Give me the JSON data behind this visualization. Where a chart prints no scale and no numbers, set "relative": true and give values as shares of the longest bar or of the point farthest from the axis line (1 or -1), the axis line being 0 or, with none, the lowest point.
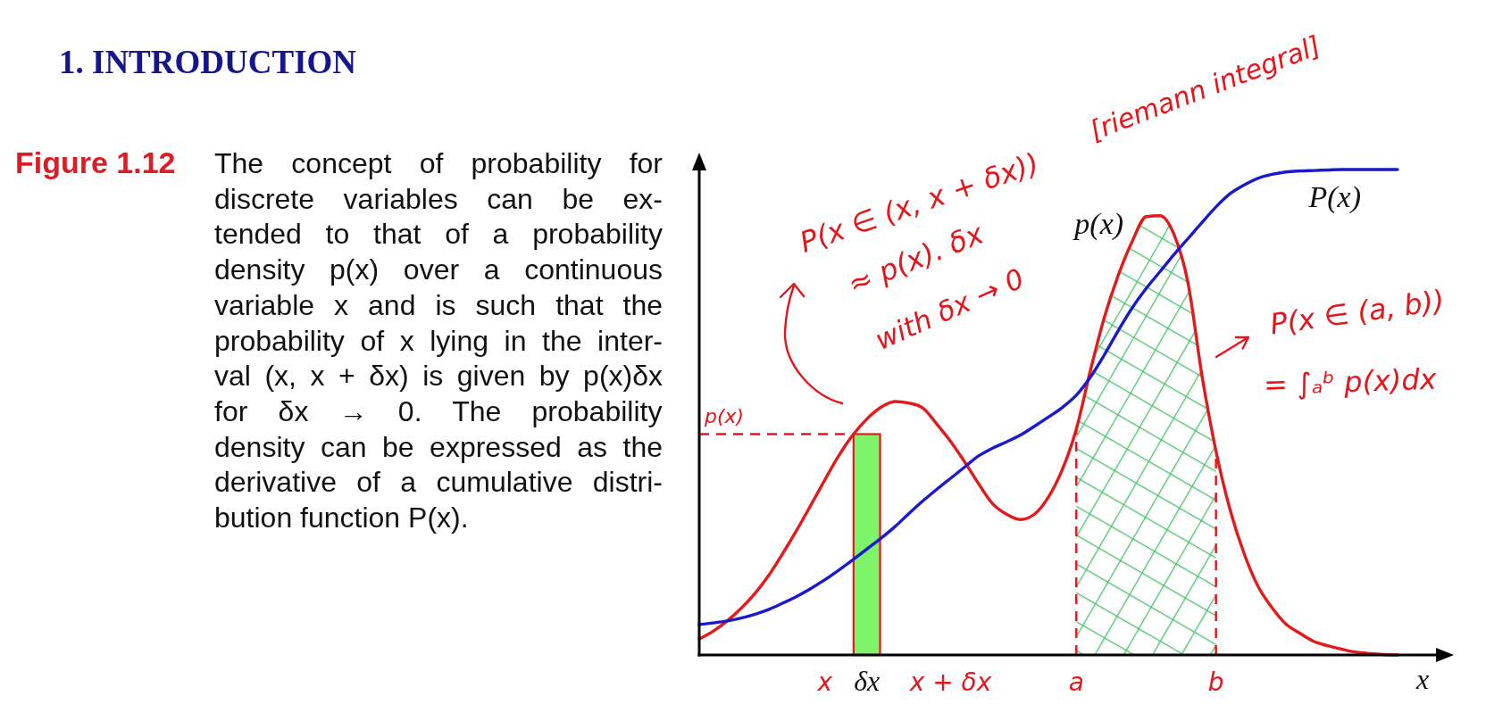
{
  "chart_data": {
    "type": "line",
    "title": "1. INTRODUCTION",
    "subtitle": "Figure 1.12",
    "xlabel": "x",
    "relative": true,
    "categories": [
      null,
      null,
      null,
      null,
      null,
      null,
      null,
      null,
      null,
      "x",
      null,
      null,
      "δx",
      null,
      null,
      null,
      null,
      null,
      "x + δx",
      null,
      null,
      null,
      null,
      null,
      null,
      null,
      null,
      "a",
      null,
      null,
      null,
      null,
      null,
      null,
      null,
      null,
      null,
      "b",
      null,
      null,
      null,
      null,
      null,
      null,
      null,
      null,
      null,
      null,
      null,
      null,
      null
    ],
    "series": [
      {
        "name": "p(x)",
        "color": "#e31a1c",
        "values": [
          0.033,
          0.049,
          0.07,
          0.096,
          0.127,
          0.165,
          0.21,
          0.258,
          0.309,
          0.361,
          0.411,
          0.453,
          0.486,
          0.51,
          0.522,
          0.519,
          0.509,
          0.476,
          0.44,
          0.398,
          0.353,
          0.312,
          0.29,
          0.279,
          0.29,
          0.325,
          0.382,
          0.465,
          0.585,
          0.695,
          0.782,
          0.852,
          0.903,
          0.905,
          0.866,
          0.766,
          0.575,
          0.42,
          0.3,
          0.21,
          0.142,
          0.098,
          0.064,
          0.045,
          0.028,
          0.019,
          0.012,
          0.006,
          0.003,
          0.001,
          0
        ]
      },
      {
        "name": "P(x)",
        "color": "#1a1acc",
        "values": [
          0.063,
          0.066,
          0.07,
          0.076,
          0.084,
          0.094,
          0.107,
          0.121,
          0.137,
          0.155,
          0.175,
          0.196,
          0.218,
          0.24,
          0.264,
          0.291,
          0.317,
          0.341,
          0.364,
          0.387,
          0.41,
          0.426,
          0.439,
          0.453,
          0.471,
          0.49,
          0.51,
          0.535,
          0.572,
          0.618,
          0.668,
          0.715,
          0.755,
          0.79,
          0.825,
          0.858,
          0.891,
          0.923,
          0.95,
          0.968,
          0.982,
          0.99,
          0.995,
          0.997,
          0.998,
          0.999,
          1,
          1,
          1,
          1,
          1
        ]
      },
      {
        "type": "bar",
        "color": "#7ef46a",
        "values": [
          null,
          null,
          null,
          null,
          null,
          null,
          null,
          null,
          null,
          null,
          null,
          null,
          0.455,
          null,
          null,
          null,
          null,
          null,
          null,
          null,
          null,
          null,
          null,
          null,
          null,
          null,
          null,
          null,
          null,
          null,
          null,
          null,
          null,
          null,
          null,
          null,
          null,
          null,
          null,
          null,
          null,
          null,
          null,
          null,
          null,
          null,
          null,
          null,
          null,
          null,
          null
        ]
      }
    ],
    "bands": [
      {
        "axis": "x",
        "from": "a",
        "to": "b",
        "color": "#46c36a"
      }
    ],
    "ref_lines": [
      {
        "axis": "y",
        "value": 0.455,
        "label": "p(x)",
        "color": "#e3161c",
        "line_style": "dashed"
      },
      {
        "axis": "x",
        "value": "a",
        "color": "#e3161c",
        "line_style": "dashed"
      },
      {
        "axis": "x",
        "value": "b",
        "color": "#e3161c",
        "line_style": "dashed"
      }
    ],
    "annotations": [
      "The concept of probability for\ndiscrete variables can be ex-\ntended to that of a probability\ndensity p(x) over a continuous\nvariable x and is such that the\nprobability of x lying in the inter-\nval (x, x + δx) is given by p(x)δx\nfor δx → 0. The probability\ndensity can be expressed as the\nderivative of a cumulative distri-\nbution function P(x).",
      "P(x ∈ (x, x + δx))",
      "≈ p(x). δx",
      "with δx → 0",
      "[riemann integral]",
      "P(x ∈ (a, b))",
      "= ∫ₐᵇ p(x)dx"
    ]
  }
}
